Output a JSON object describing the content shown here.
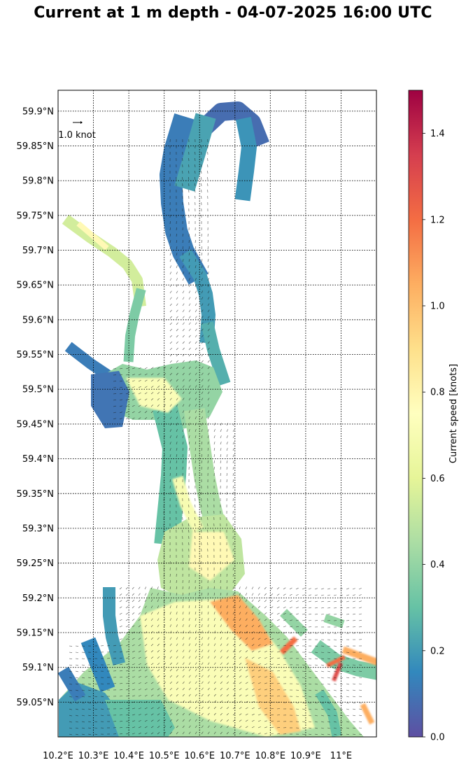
{
  "title": "Current at 1 m depth - 04-07-2025 16:00 UTC",
  "map": {
    "lon_ticks": [
      "10.2°E",
      "10.3°E",
      "10.4°E",
      "10.5°E",
      "10.6°E",
      "10.7°E",
      "10.8°E",
      "10.9°E",
      "11°E"
    ],
    "lon_values": [
      10.2,
      10.3,
      10.4,
      10.5,
      10.6,
      10.7,
      10.8,
      10.9,
      11.0
    ],
    "lat_ticks": [
      "59.9°N",
      "59.85°N",
      "59.8°N",
      "59.75°N",
      "59.7°N",
      "59.65°N",
      "59.6°N",
      "59.55°N",
      "59.5°N",
      "59.45°N",
      "59.4°N",
      "59.35°N",
      "59.3°N",
      "59.25°N",
      "59.2°N",
      "59.15°N",
      "59.1°N",
      "59.05°N"
    ],
    "lat_values": [
      59.9,
      59.85,
      59.8,
      59.75,
      59.7,
      59.65,
      59.6,
      59.55,
      59.5,
      59.45,
      59.4,
      59.35,
      59.3,
      59.25,
      59.2,
      59.15,
      59.1,
      59.05
    ],
    "lon_range": [
      10.2,
      11.1
    ],
    "lat_range": [
      59.0,
      59.93
    ],
    "grid": true,
    "reference_arrow_label": "1.0 knot"
  },
  "colorbar": {
    "label": "Current speed [knots]",
    "ticks": [
      "0.0",
      "0.2",
      "0.4",
      "0.6",
      "0.8",
      "1.0",
      "1.2",
      "1.4"
    ],
    "tick_values": [
      0.0,
      0.2,
      0.4,
      0.6,
      0.8,
      1.0,
      1.2,
      1.4
    ],
    "range": [
      0.0,
      1.5
    ],
    "colormap": [
      "#5e4fa2",
      "#3288bd",
      "#66c2a5",
      "#abdda4",
      "#e6f598",
      "#ffffbf",
      "#fee08b",
      "#fdae61",
      "#f46d43",
      "#d53e4f",
      "#9e0142"
    ]
  }
}
